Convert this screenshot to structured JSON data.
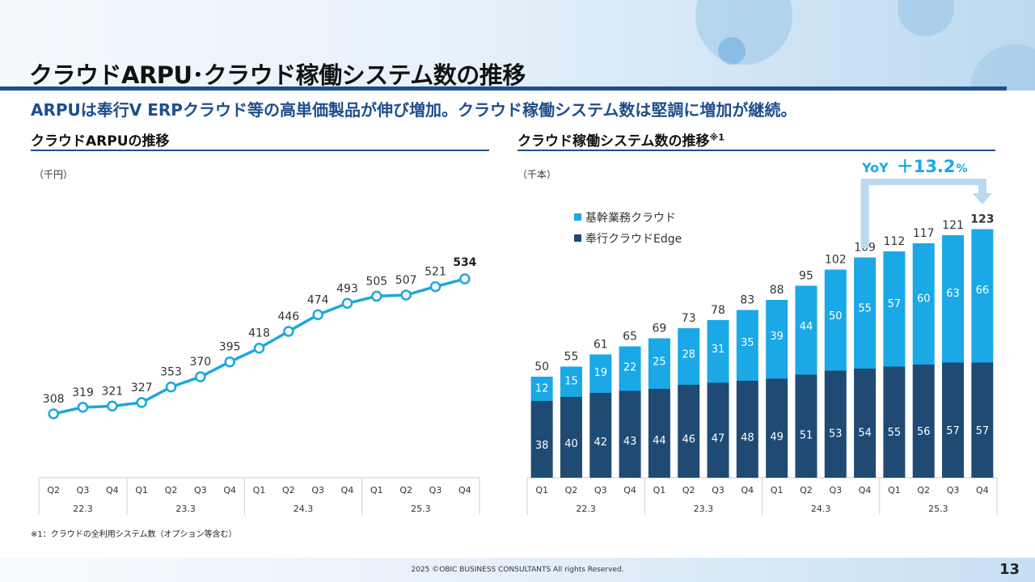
{
  "page": {
    "title": "クラウドARPU･クラウド稼働システム数の推移",
    "subtitle": "ARPUは奉行V ERPクラウド等の高単価製品が伸び増加。クラウド稼働システム数は堅調に増加が継続。",
    "footnote": "※1：クラウドの全利用システム数（オプション等含む）",
    "copyright": "2025 ©OBIC BUSINESS CONSULTANTS All rights Reserved.",
    "page_number": "13"
  },
  "colors": {
    "navy": "#1f4e8c",
    "light_blue": "#1aa8e6",
    "dark_bar": "#1f4a73",
    "line": "#1ea7dc"
  },
  "chart_data": [
    {
      "type": "line",
      "title": "クラウドARPUの推移",
      "unit": "（千円）",
      "categories": [
        "Q2",
        "Q3",
        "Q4",
        "Q1",
        "Q2",
        "Q3",
        "Q4",
        "Q1",
        "Q2",
        "Q3",
        "Q4",
        "Q1",
        "Q2",
        "Q3",
        "Q4"
      ],
      "groups": [
        {
          "label": "22.3",
          "count": 3
        },
        {
          "label": "23.3",
          "count": 4
        },
        {
          "label": "24.3",
          "count": 4
        },
        {
          "label": "25.3",
          "count": 4
        }
      ],
      "values": [
        308,
        319,
        321,
        327,
        353,
        370,
        395,
        418,
        446,
        474,
        493,
        505,
        507,
        521,
        534
      ],
      "ylim": [
        300,
        545
      ]
    },
    {
      "type": "bar",
      "stacked": true,
      "title": "クラウド稼働システム数の推移",
      "title_note": "※1",
      "unit": "（千本）",
      "categories": [
        "Q1",
        "Q2",
        "Q3",
        "Q4",
        "Q1",
        "Q2",
        "Q3",
        "Q4",
        "Q1",
        "Q2",
        "Q3",
        "Q4",
        "Q1",
        "Q2",
        "Q3",
        "Q4"
      ],
      "groups": [
        {
          "label": "22.3",
          "count": 4
        },
        {
          "label": "23.3",
          "count": 4
        },
        {
          "label": "24.3",
          "count": 4
        },
        {
          "label": "25.3",
          "count": 4
        }
      ],
      "series": [
        {
          "name": "奉行クラウドEdge",
          "values": [
            38,
            40,
            42,
            43,
            44,
            46,
            47,
            48,
            49,
            51,
            53,
            54,
            55,
            56,
            57,
            57
          ]
        },
        {
          "name": "基幹業務クラウド",
          "values": [
            12,
            15,
            19,
            22,
            25,
            28,
            31,
            35,
            39,
            44,
            50,
            55,
            57,
            60,
            63,
            66
          ]
        }
      ],
      "totals": [
        50,
        55,
        61,
        65,
        69,
        73,
        78,
        83,
        88,
        95,
        102,
        109,
        112,
        117,
        121,
        123
      ],
      "ylim": [
        0,
        150
      ],
      "annotation": {
        "yoy_label": "YoY",
        "yoy_value": "＋13.2",
        "yoy_pct": "%"
      }
    }
  ]
}
